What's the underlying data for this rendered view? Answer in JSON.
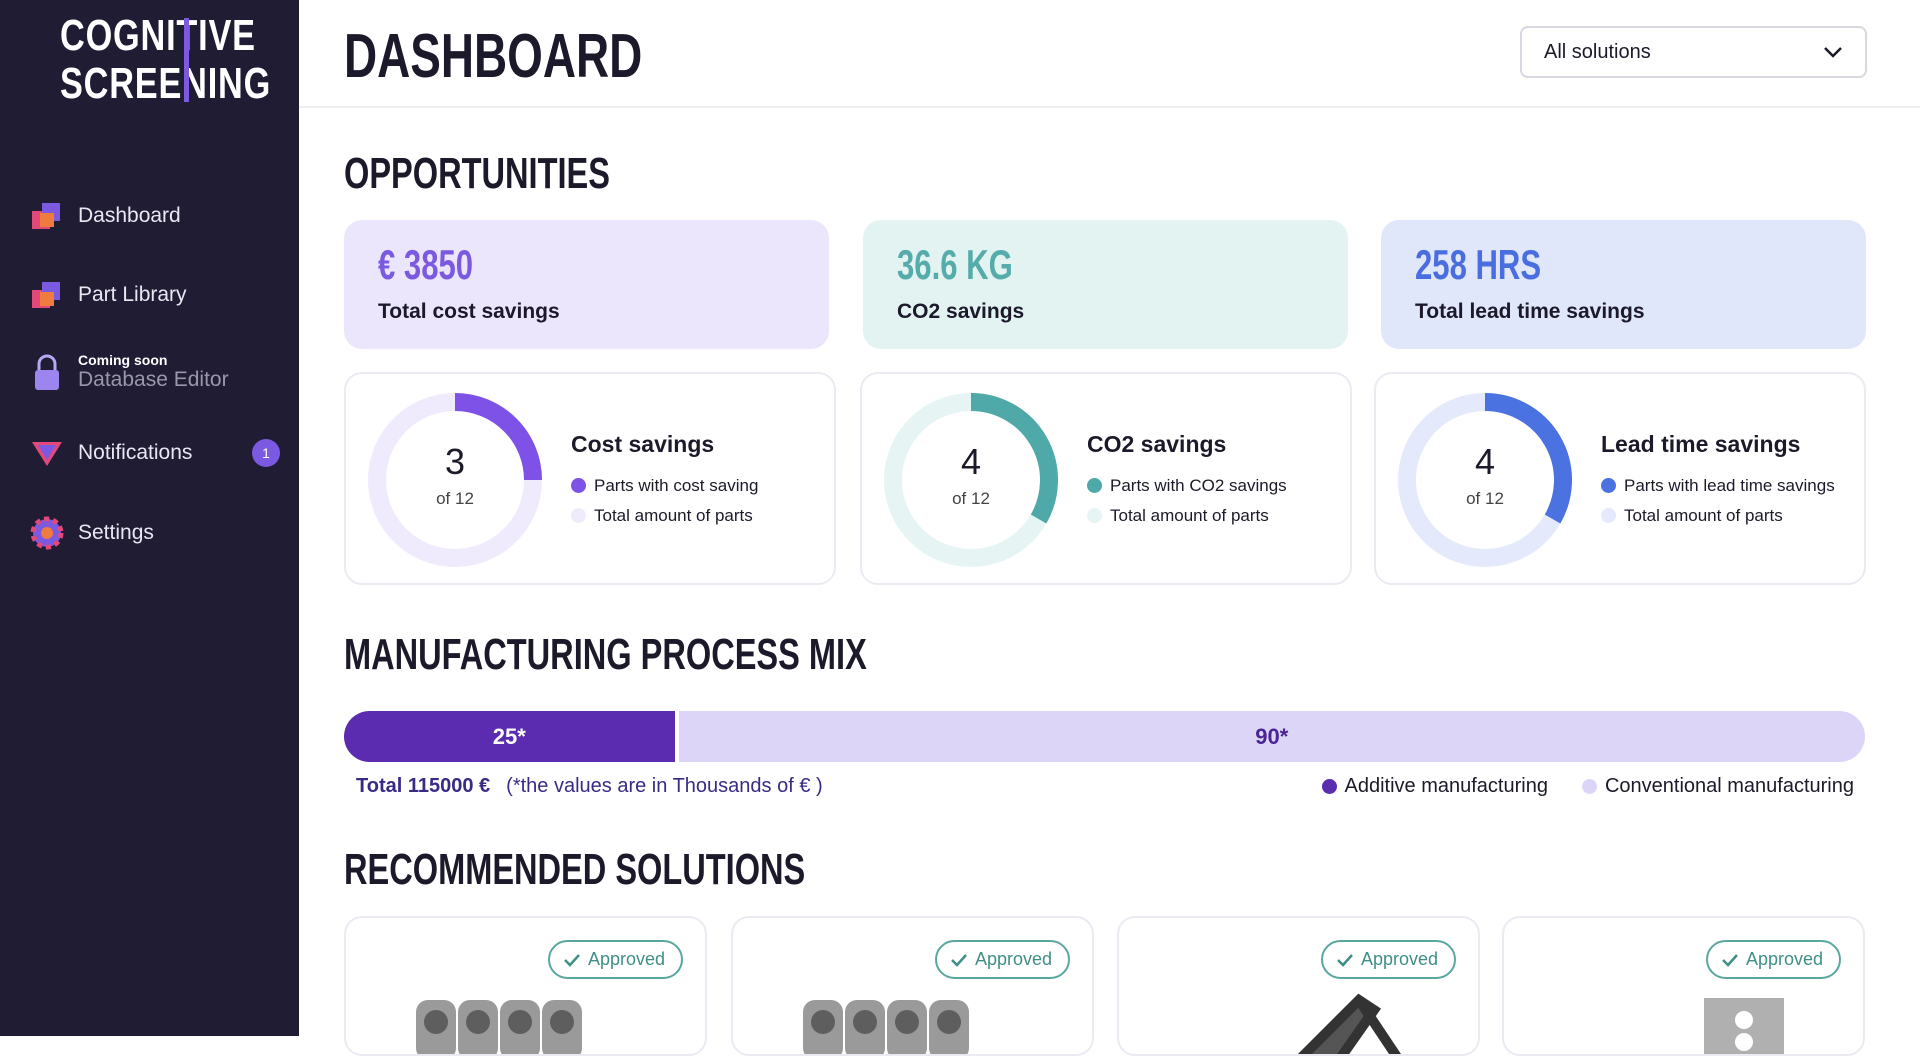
{
  "sidebar": {
    "logo": [
      "COGNITIVE",
      "SCREENING"
    ],
    "nav": [
      {
        "label": "Dashboard"
      },
      {
        "label": "Part Library"
      },
      {
        "note": "Coming soon",
        "label": "Database Editor"
      },
      {
        "label": "Notifications",
        "badge": 1
      },
      {
        "label": "Settings"
      }
    ]
  },
  "header": {
    "title": "DASHBOARD",
    "select": "All solutions"
  },
  "opportunities": {
    "title": "OPPORTUNITIES",
    "kpis": [
      {
        "value": "€ 3850",
        "label": "Total cost savings",
        "color": "#7b59e0",
        "background": "#ebe6fb"
      },
      {
        "value": "36.6 KG",
        "label": "CO2 savings",
        "color": "#55acaa",
        "background": "#e2f3f2"
      },
      {
        "value": "258 HRS",
        "label": "Total lead time savings",
        "color": "#4a6de0",
        "background": "#e0e7fa"
      }
    ],
    "donuts": [
      {
        "title": "Cost savings",
        "count": 3,
        "total": {
          "value": 12,
          "label": "of 12"
        },
        "legend": [
          "Parts with cost saving",
          "Total amount of parts"
        ],
        "color": "#7e52e6",
        "track_color": "#efebfc"
      },
      {
        "title": "CO2 savings",
        "count": 4,
        "total": {
          "value": 12,
          "label": "of 12"
        },
        "legend": [
          "Parts with CO2 savings",
          "Total amount of parts"
        ],
        "color": "#4fa9a8",
        "track_color": "#e6f5f4"
      },
      {
        "title": "Lead time savings",
        "count": 4,
        "total": {
          "value": 12,
          "label": "of 12"
        },
        "legend": [
          "Parts with lead time savings",
          "Total amount of parts"
        ],
        "color": "#4a72e0",
        "track_color": "#e4eafb"
      }
    ]
  },
  "process_mix": {
    "title": "MANUFACTURING PROCESS MIX",
    "segments": [
      {
        "name": "Additive manufacturing",
        "value": 25,
        "value_label": "25*",
        "color": "#5b2bb0",
        "text_color": "#ffffff"
      },
      {
        "name": "Conventional manufacturing",
        "value": 90,
        "value_label": "90*",
        "color": "#ddd5f8",
        "text_color": "#4b2596"
      }
    ],
    "total": "Total 115000 €",
    "note": "(*the values are in Thousands of € )"
  },
  "recommended": {
    "title": "RECOMMENDED SOLUTIONS",
    "cards": [
      {
        "badge": "Approved"
      },
      {
        "badge": "Approved"
      },
      {
        "badge": "Approved"
      },
      {
        "badge": "Approved"
      }
    ]
  }
}
